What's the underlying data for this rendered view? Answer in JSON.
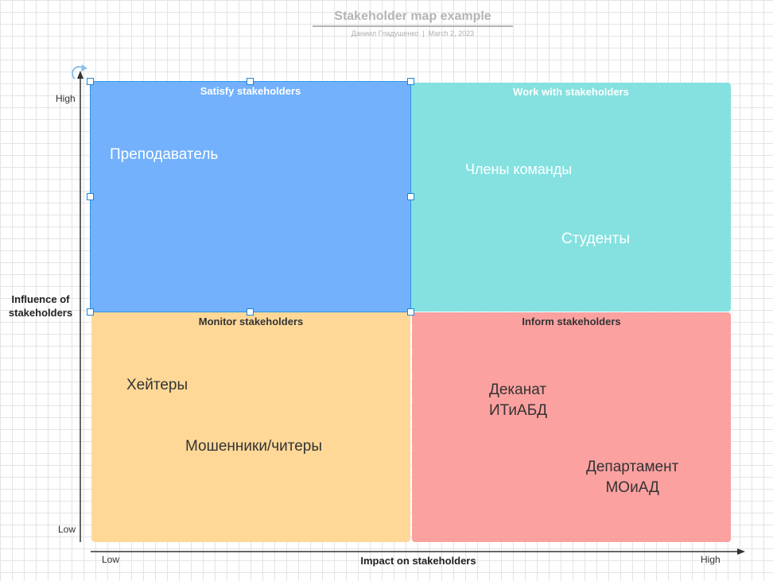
{
  "document": {
    "title": "Stakeholder map example",
    "author": "Даниил Гладушенко",
    "separator": "|",
    "date": "March 2, 2023"
  },
  "axes": {
    "y_label": "Influence of stakeholders",
    "y_high": "High",
    "y_low": "Low",
    "x_label": "Impact on stakeholders",
    "x_low": "Low",
    "x_high": "High"
  },
  "quadrants": {
    "satisfy": {
      "title": "Satisfy stakeholders",
      "color": "#73b1fc",
      "stakeholders": [
        "Преподаватель"
      ]
    },
    "work": {
      "title": "Work with stakeholders",
      "color": "#84e1e0",
      "stakeholders": [
        "Члены команды",
        "Студенты"
      ]
    },
    "monitor": {
      "title": "Monitor stakeholders",
      "color": "#ffd898",
      "stakeholders": [
        "Хейтеры",
        "Мошенники/читеры"
      ]
    },
    "inform": {
      "title": "Inform stakeholders",
      "color": "#fba1a0",
      "stakeholders": [
        "Деканат\nИТиАБД",
        "Департамент\nМОиАД"
      ]
    }
  },
  "selection": {
    "accent": "#1a87d8"
  }
}
